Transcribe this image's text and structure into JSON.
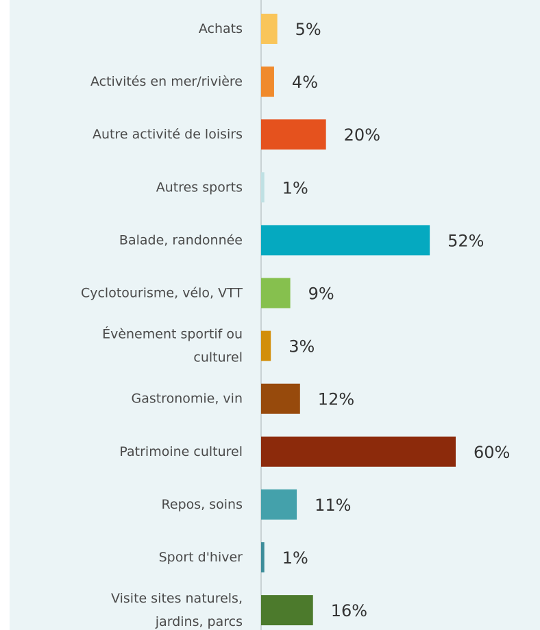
{
  "chart_data": {
    "type": "bar",
    "orientation": "horizontal",
    "categories": [
      "Achats",
      "Activités en mer/rivière",
      "Autre activité de loisirs",
      "Autres sports",
      "Balade, randonnée",
      "Cyclotourisme, vélo, VTT",
      "Évènement sportif ou culturel",
      "Gastronomie, vin",
      "Patrimoine culturel",
      "Repos, soins",
      "Sport d'hiver",
      "Visite sites naturels, jardins, parcs"
    ],
    "values": [
      5,
      4,
      20,
      1,
      52,
      9,
      3,
      12,
      60,
      11,
      1,
      16
    ],
    "value_labels": [
      "5%",
      "4%",
      "20%",
      "1%",
      "52%",
      "9%",
      "3%",
      "12%",
      "60%",
      "11%",
      "1%",
      "16%"
    ],
    "colors": [
      "#f9c55a",
      "#f08a2c",
      "#e5521e",
      "#bfe0e3",
      "#05a9c0",
      "#86c04e",
      "#d28e0a",
      "#974a0c",
      "#8c2a0b",
      "#44a1ab",
      "#3d8d9a",
      "#4c7a2c"
    ]
  }
}
